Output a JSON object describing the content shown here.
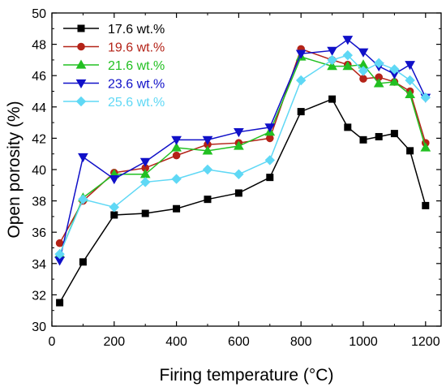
{
  "chart_data": {
    "type": "line",
    "title": "",
    "xlabel": "Firing temperature (°C)",
    "ylabel": "Open porosity (%)",
    "xlim": [
      0,
      1250
    ],
    "ylim": [
      30,
      50
    ],
    "xticks": [
      0,
      200,
      400,
      600,
      800,
      1000,
      1200
    ],
    "yticks": [
      30,
      32,
      34,
      36,
      38,
      40,
      42,
      44,
      46,
      48,
      50
    ],
    "grid": false,
    "legend_position": "top-left",
    "x": [
      25,
      100,
      200,
      300,
      400,
      500,
      600,
      700,
      800,
      900,
      950,
      1000,
      1050,
      1100,
      1150,
      1200
    ],
    "series": [
      {
        "name": "17.6 wt.%",
        "color": "#000000",
        "marker": "square",
        "values": [
          31.5,
          34.1,
          37.1,
          37.2,
          37.5,
          38.1,
          38.5,
          39.5,
          43.7,
          44.5,
          42.7,
          41.9,
          42.1,
          42.3,
          41.2,
          37.7
        ]
      },
      {
        "name": "19.6 wt.%",
        "color": "#b42318",
        "marker": "circle",
        "values": [
          35.3,
          38.0,
          39.8,
          40.1,
          40.9,
          41.6,
          41.7,
          42.0,
          47.7,
          47.0,
          46.7,
          45.8,
          45.9,
          45.6,
          45.0,
          41.7
        ]
      },
      {
        "name": "21.6 wt.%",
        "color": "#22c022",
        "marker": "triangle-up",
        "values": [
          34.6,
          38.2,
          39.7,
          39.7,
          41.4,
          41.2,
          41.5,
          42.4,
          47.2,
          46.6,
          46.6,
          46.7,
          45.5,
          45.6,
          44.8,
          41.4
        ]
      },
      {
        "name": "23.6 wt.%",
        "color": "#1010c8",
        "marker": "triangle-down",
        "values": [
          34.2,
          40.8,
          39.4,
          40.5,
          41.9,
          41.9,
          42.4,
          42.7,
          47.4,
          47.6,
          48.3,
          47.5,
          46.6,
          46.1,
          46.7,
          44.6
        ]
      },
      {
        "name": "25.6 wt.%",
        "color": "#5fd8f5",
        "marker": "diamond",
        "values": [
          34.6,
          38.1,
          37.6,
          39.2,
          39.4,
          40.0,
          39.7,
          40.6,
          45.7,
          47.0,
          47.3,
          46.3,
          46.8,
          46.4,
          45.7,
          44.6
        ]
      }
    ]
  }
}
